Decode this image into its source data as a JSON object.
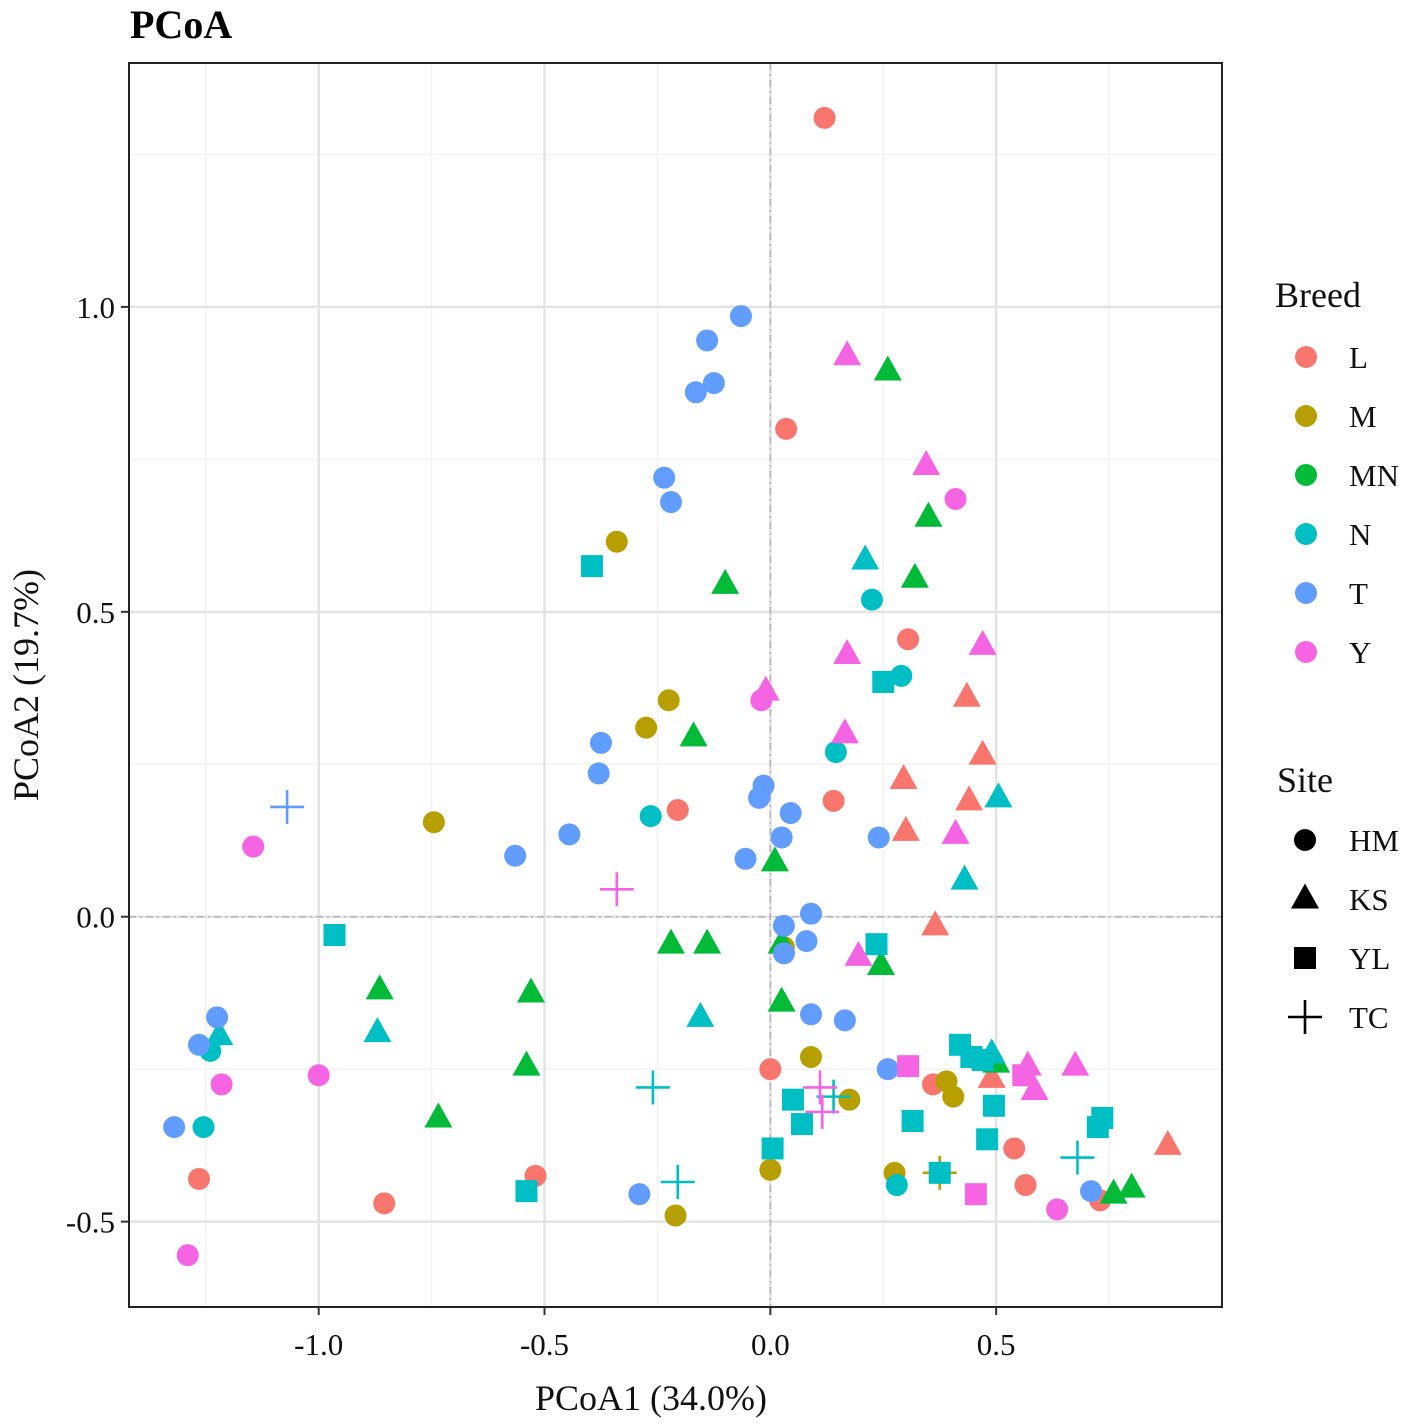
{
  "chart_data": {
    "type": "scatter",
    "title": "PCoA",
    "xlabel": "PCoA1 (34.0%)",
    "ylabel": "PCoA2 (19.7%)",
    "xlim": [
      -1.42,
      1.0
    ],
    "ylim": [
      -0.64,
      1.4
    ],
    "xticks": [
      {
        "value": -1.0,
        "label": "-1.0"
      },
      {
        "value": -0.5,
        "label": "-0.5"
      },
      {
        "value": 0.0,
        "label": "0.0"
      },
      {
        "value": 0.5,
        "label": "0.5"
      }
    ],
    "yticks": [
      {
        "value": -0.5,
        "label": "-0.5"
      },
      {
        "value": 0.0,
        "label": "0.0"
      },
      {
        "value": 0.5,
        "label": "0.5"
      },
      {
        "value": 1.0,
        "label": "1.0"
      }
    ],
    "grid": true,
    "reference_lines": {
      "x": 0,
      "y": 0
    },
    "legend_breed": {
      "title": "Breed",
      "items": [
        {
          "name": "L",
          "color": "#F8766D"
        },
        {
          "name": "M",
          "color": "#B79F00"
        },
        {
          "name": "MN",
          "color": "#00BA38"
        },
        {
          "name": "N",
          "color": "#00BFC4"
        },
        {
          "name": "T",
          "color": "#619CFF"
        },
        {
          "name": "Y",
          "color": "#F564E3"
        }
      ]
    },
    "legend_site": {
      "title": "Site",
      "items": [
        {
          "name": "HM",
          "shape": "circle"
        },
        {
          "name": "KS",
          "shape": "triangle"
        },
        {
          "name": "YL",
          "shape": "square"
        },
        {
          "name": "TC",
          "shape": "plus"
        }
      ]
    },
    "points": [
      {
        "x": 0.12,
        "y": 1.31,
        "breed": "L",
        "site": "HM"
      },
      {
        "x": 0.035,
        "y": 0.8,
        "breed": "L",
        "site": "HM"
      },
      {
        "x": 0.305,
        "y": 0.455,
        "breed": "L",
        "site": "HM"
      },
      {
        "x": -0.205,
        "y": 0.175,
        "breed": "L",
        "site": "HM"
      },
      {
        "x": 0.14,
        "y": 0.19,
        "breed": "L",
        "site": "HM"
      },
      {
        "x": 0.0,
        "y": -0.25,
        "breed": "L",
        "site": "HM"
      },
      {
        "x": 0.36,
        "y": -0.275,
        "breed": "L",
        "site": "HM"
      },
      {
        "x": 0.54,
        "y": -0.38,
        "breed": "L",
        "site": "HM"
      },
      {
        "x": 0.565,
        "y": -0.44,
        "breed": "L",
        "site": "HM"
      },
      {
        "x": 0.73,
        "y": -0.465,
        "breed": "L",
        "site": "HM"
      },
      {
        "x": -1.265,
        "y": -0.43,
        "breed": "L",
        "site": "HM"
      },
      {
        "x": -0.855,
        "y": -0.47,
        "breed": "L",
        "site": "HM"
      },
      {
        "x": -0.52,
        "y": -0.425,
        "breed": "L",
        "site": "HM"
      },
      {
        "x": 0.435,
        "y": 0.36,
        "breed": "L",
        "site": "KS"
      },
      {
        "x": 0.47,
        "y": 0.265,
        "breed": "L",
        "site": "KS"
      },
      {
        "x": 0.295,
        "y": 0.225,
        "breed": "L",
        "site": "KS"
      },
      {
        "x": 0.44,
        "y": 0.19,
        "breed": "L",
        "site": "KS"
      },
      {
        "x": 0.3,
        "y": 0.14,
        "breed": "L",
        "site": "KS"
      },
      {
        "x": 0.365,
        "y": -0.015,
        "breed": "L",
        "site": "KS"
      },
      {
        "x": 0.49,
        "y": -0.265,
        "breed": "L",
        "site": "KS"
      },
      {
        "x": 0.88,
        "y": -0.375,
        "breed": "L",
        "site": "KS"
      },
      {
        "x": -0.34,
        "y": 0.615,
        "breed": "M",
        "site": "HM"
      },
      {
        "x": -0.225,
        "y": 0.355,
        "breed": "M",
        "site": "HM"
      },
      {
        "x": -0.275,
        "y": 0.31,
        "breed": "M",
        "site": "HM"
      },
      {
        "x": -0.745,
        "y": 0.155,
        "breed": "M",
        "site": "HM"
      },
      {
        "x": 0.09,
        "y": -0.23,
        "breed": "M",
        "site": "HM"
      },
      {
        "x": 0.175,
        "y": -0.3,
        "breed": "M",
        "site": "HM"
      },
      {
        "x": 0.39,
        "y": -0.27,
        "breed": "M",
        "site": "HM"
      },
      {
        "x": 0.405,
        "y": -0.295,
        "breed": "M",
        "site": "HM"
      },
      {
        "x": 0.0,
        "y": -0.415,
        "breed": "M",
        "site": "HM"
      },
      {
        "x": 0.275,
        "y": -0.42,
        "breed": "M",
        "site": "HM"
      },
      {
        "x": -0.21,
        "y": -0.49,
        "breed": "M",
        "site": "HM"
      },
      {
        "x": 0.03,
        "y": -0.05,
        "breed": "M",
        "site": "HM"
      },
      {
        "x": 0.375,
        "y": -0.42,
        "breed": "M",
        "site": "TC"
      },
      {
        "x": 0.26,
        "y": 0.895,
        "breed": "MN",
        "site": "KS"
      },
      {
        "x": 0.35,
        "y": 0.655,
        "breed": "MN",
        "site": "KS"
      },
      {
        "x": 0.32,
        "y": 0.555,
        "breed": "MN",
        "site": "KS"
      },
      {
        "x": -0.1,
        "y": 0.545,
        "breed": "MN",
        "site": "KS"
      },
      {
        "x": -0.17,
        "y": 0.295,
        "breed": "MN",
        "site": "KS"
      },
      {
        "x": 0.01,
        "y": 0.09,
        "breed": "MN",
        "site": "KS"
      },
      {
        "x": -0.22,
        "y": -0.045,
        "breed": "MN",
        "site": "KS"
      },
      {
        "x": -0.14,
        "y": -0.045,
        "breed": "MN",
        "site": "KS"
      },
      {
        "x": 0.025,
        "y": -0.045,
        "breed": "MN",
        "site": "KS"
      },
      {
        "x": 0.245,
        "y": -0.08,
        "breed": "MN",
        "site": "KS"
      },
      {
        "x": -0.865,
        "y": -0.12,
        "breed": "MN",
        "site": "KS"
      },
      {
        "x": -0.53,
        "y": -0.125,
        "breed": "MN",
        "site": "KS"
      },
      {
        "x": 0.025,
        "y": -0.14,
        "breed": "MN",
        "site": "KS"
      },
      {
        "x": -0.54,
        "y": -0.245,
        "breed": "MN",
        "site": "KS"
      },
      {
        "x": 0.5,
        "y": -0.24,
        "breed": "MN",
        "site": "KS"
      },
      {
        "x": -0.735,
        "y": -0.33,
        "breed": "MN",
        "site": "KS"
      },
      {
        "x": 0.76,
        "y": -0.455,
        "breed": "MN",
        "site": "KS"
      },
      {
        "x": 0.8,
        "y": -0.445,
        "breed": "MN",
        "site": "KS"
      },
      {
        "x": 0.225,
        "y": 0.52,
        "breed": "N",
        "site": "HM"
      },
      {
        "x": 0.29,
        "y": 0.395,
        "breed": "N",
        "site": "HM"
      },
      {
        "x": 0.145,
        "y": 0.27,
        "breed": "N",
        "site": "HM"
      },
      {
        "x": -0.265,
        "y": 0.165,
        "breed": "N",
        "site": "HM"
      },
      {
        "x": -1.24,
        "y": -0.22,
        "breed": "N",
        "site": "HM"
      },
      {
        "x": -1.255,
        "y": -0.345,
        "breed": "N",
        "site": "HM"
      },
      {
        "x": 0.28,
        "y": -0.44,
        "breed": "N",
        "site": "HM"
      },
      {
        "x": 0.21,
        "y": 0.585,
        "breed": "N",
        "site": "KS"
      },
      {
        "x": 0.505,
        "y": 0.195,
        "breed": "N",
        "site": "KS"
      },
      {
        "x": 0.43,
        "y": 0.06,
        "breed": "N",
        "site": "KS"
      },
      {
        "x": -1.22,
        "y": -0.195,
        "breed": "N",
        "site": "KS"
      },
      {
        "x": -0.87,
        "y": -0.19,
        "breed": "N",
        "site": "KS"
      },
      {
        "x": -0.155,
        "y": -0.165,
        "breed": "N",
        "site": "KS"
      },
      {
        "x": 0.49,
        "y": -0.225,
        "breed": "N",
        "site": "KS"
      },
      {
        "x": -0.395,
        "y": 0.575,
        "breed": "N",
        "site": "YL"
      },
      {
        "x": 0.25,
        "y": 0.385,
        "breed": "N",
        "site": "YL"
      },
      {
        "x": -0.965,
        "y": -0.03,
        "breed": "N",
        "site": "YL"
      },
      {
        "x": 0.235,
        "y": -0.045,
        "breed": "N",
        "site": "YL"
      },
      {
        "x": 0.42,
        "y": -0.21,
        "breed": "N",
        "site": "YL"
      },
      {
        "x": 0.445,
        "y": -0.23,
        "breed": "N",
        "site": "YL"
      },
      {
        "x": 0.47,
        "y": -0.235,
        "breed": "N",
        "site": "YL"
      },
      {
        "x": 0.05,
        "y": -0.3,
        "breed": "N",
        "site": "YL"
      },
      {
        "x": 0.07,
        "y": -0.34,
        "breed": "N",
        "site": "YL"
      },
      {
        "x": 0.315,
        "y": -0.335,
        "breed": "N",
        "site": "YL"
      },
      {
        "x": 0.495,
        "y": -0.31,
        "breed": "N",
        "site": "YL"
      },
      {
        "x": 0.735,
        "y": -0.33,
        "breed": "N",
        "site": "YL"
      },
      {
        "x": 0.725,
        "y": -0.345,
        "breed": "N",
        "site": "YL"
      },
      {
        "x": 0.48,
        "y": -0.365,
        "breed": "N",
        "site": "YL"
      },
      {
        "x": 0.005,
        "y": -0.38,
        "breed": "N",
        "site": "YL"
      },
      {
        "x": 0.375,
        "y": -0.42,
        "breed": "N",
        "site": "YL"
      },
      {
        "x": -0.54,
        "y": -0.45,
        "breed": "N",
        "site": "YL"
      },
      {
        "x": 0.14,
        "y": -0.295,
        "breed": "N",
        "site": "TC"
      },
      {
        "x": -0.205,
        "y": -0.435,
        "breed": "N",
        "site": "TC"
      },
      {
        "x": -0.26,
        "y": -0.28,
        "breed": "N",
        "site": "TC"
      },
      {
        "x": 0.68,
        "y": -0.395,
        "breed": "N",
        "site": "TC"
      },
      {
        "x": -0.065,
        "y": 0.985,
        "breed": "T",
        "site": "HM"
      },
      {
        "x": -0.14,
        "y": 0.945,
        "breed": "T",
        "site": "HM"
      },
      {
        "x": -0.125,
        "y": 0.875,
        "breed": "T",
        "site": "HM"
      },
      {
        "x": -0.165,
        "y": 0.86,
        "breed": "T",
        "site": "HM"
      },
      {
        "x": -0.235,
        "y": 0.72,
        "breed": "T",
        "site": "HM"
      },
      {
        "x": -0.22,
        "y": 0.68,
        "breed": "T",
        "site": "HM"
      },
      {
        "x": -0.375,
        "y": 0.285,
        "breed": "T",
        "site": "HM"
      },
      {
        "x": -0.38,
        "y": 0.235,
        "breed": "T",
        "site": "HM"
      },
      {
        "x": -0.015,
        "y": 0.215,
        "breed": "T",
        "site": "HM"
      },
      {
        "x": -0.025,
        "y": 0.195,
        "breed": "T",
        "site": "HM"
      },
      {
        "x": 0.045,
        "y": 0.17,
        "breed": "T",
        "site": "HM"
      },
      {
        "x": -0.445,
        "y": 0.135,
        "breed": "T",
        "site": "HM"
      },
      {
        "x": 0.025,
        "y": 0.13,
        "breed": "T",
        "site": "HM"
      },
      {
        "x": 0.24,
        "y": 0.13,
        "breed": "T",
        "site": "HM"
      },
      {
        "x": -0.565,
        "y": 0.1,
        "breed": "T",
        "site": "HM"
      },
      {
        "x": -0.055,
        "y": 0.095,
        "breed": "T",
        "site": "HM"
      },
      {
        "x": 0.09,
        "y": 0.005,
        "breed": "T",
        "site": "HM"
      },
      {
        "x": 0.03,
        "y": -0.015,
        "breed": "T",
        "site": "HM"
      },
      {
        "x": 0.08,
        "y": -0.04,
        "breed": "T",
        "site": "HM"
      },
      {
        "x": 0.03,
        "y": -0.06,
        "breed": "T",
        "site": "HM"
      },
      {
        "x": 0.09,
        "y": -0.16,
        "breed": "T",
        "site": "HM"
      },
      {
        "x": 0.165,
        "y": -0.17,
        "breed": "T",
        "site": "HM"
      },
      {
        "x": -1.225,
        "y": -0.165,
        "breed": "T",
        "site": "HM"
      },
      {
        "x": -1.265,
        "y": -0.21,
        "breed": "T",
        "site": "HM"
      },
      {
        "x": 0.26,
        "y": -0.25,
        "breed": "T",
        "site": "HM"
      },
      {
        "x": -1.32,
        "y": -0.345,
        "breed": "T",
        "site": "HM"
      },
      {
        "x": -0.29,
        "y": -0.455,
        "breed": "T",
        "site": "HM"
      },
      {
        "x": 0.71,
        "y": -0.45,
        "breed": "T",
        "site": "HM"
      },
      {
        "x": -1.07,
        "y": 0.18,
        "breed": "T",
        "site": "TC"
      },
      {
        "x": 0.41,
        "y": 0.685,
        "breed": "Y",
        "site": "HM"
      },
      {
        "x": -0.02,
        "y": 0.355,
        "breed": "Y",
        "site": "HM"
      },
      {
        "x": -1.145,
        "y": 0.115,
        "breed": "Y",
        "site": "HM"
      },
      {
        "x": -1.0,
        "y": -0.26,
        "breed": "Y",
        "site": "HM"
      },
      {
        "x": -1.215,
        "y": -0.275,
        "breed": "Y",
        "site": "HM"
      },
      {
        "x": 0.635,
        "y": -0.48,
        "breed": "Y",
        "site": "HM"
      },
      {
        "x": -1.29,
        "y": -0.555,
        "breed": "Y",
        "site": "HM"
      },
      {
        "x": 0.17,
        "y": 0.92,
        "breed": "Y",
        "site": "KS"
      },
      {
        "x": 0.345,
        "y": 0.74,
        "breed": "Y",
        "site": "KS"
      },
      {
        "x": 0.47,
        "y": 0.445,
        "breed": "Y",
        "site": "KS"
      },
      {
        "x": 0.17,
        "y": 0.43,
        "breed": "Y",
        "site": "KS"
      },
      {
        "x": -0.01,
        "y": 0.37,
        "breed": "Y",
        "site": "KS"
      },
      {
        "x": 0.165,
        "y": 0.3,
        "breed": "Y",
        "site": "KS"
      },
      {
        "x": 0.41,
        "y": 0.135,
        "breed": "Y",
        "site": "KS"
      },
      {
        "x": 0.195,
        "y": -0.065,
        "breed": "Y",
        "site": "KS"
      },
      {
        "x": 0.57,
        "y": -0.245,
        "breed": "Y",
        "site": "KS"
      },
      {
        "x": 0.675,
        "y": -0.245,
        "breed": "Y",
        "site": "KS"
      },
      {
        "x": 0.585,
        "y": -0.285,
        "breed": "Y",
        "site": "KS"
      },
      {
        "x": 0.305,
        "y": -0.245,
        "breed": "Y",
        "site": "YL"
      },
      {
        "x": 0.56,
        "y": -0.26,
        "breed": "Y",
        "site": "YL"
      },
      {
        "x": 0.455,
        "y": -0.455,
        "breed": "Y",
        "site": "YL"
      },
      {
        "x": -0.34,
        "y": 0.045,
        "breed": "Y",
        "site": "TC"
      },
      {
        "x": 0.11,
        "y": -0.28,
        "breed": "Y",
        "site": "TC"
      },
      {
        "x": 0.115,
        "y": -0.32,
        "breed": "Y",
        "site": "TC"
      }
    ]
  }
}
